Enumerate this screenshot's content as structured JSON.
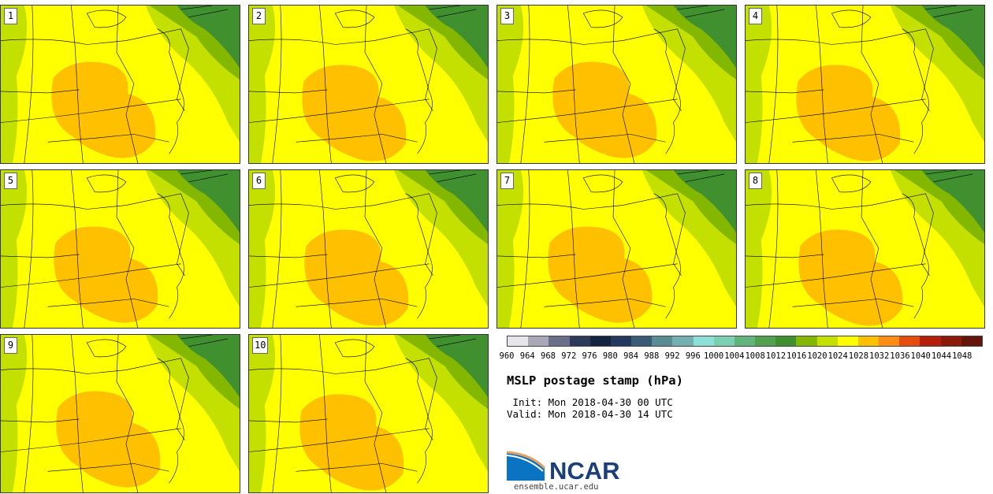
{
  "figure": {
    "title": "MSLP postage stamp (hPa)",
    "init": " Init: Mon 2018-04-30 00 UTC",
    "valid": "Valid: Mon 2018-04-30 14 UTC",
    "logo_text": "NCAR",
    "url": "ensemble.ucar.edu"
  },
  "panels": [
    {
      "label": "1"
    },
    {
      "label": "2"
    },
    {
      "label": "3"
    },
    {
      "label": "4"
    },
    {
      "label": "5"
    },
    {
      "label": "6"
    },
    {
      "label": "7"
    },
    {
      "label": "8"
    },
    {
      "label": "9"
    },
    {
      "label": "10"
    }
  ],
  "colorbar": {
    "ticks": [
      "960",
      "964",
      "968",
      "972",
      "976",
      "980",
      "984",
      "988",
      "992",
      "996",
      "1000",
      "1004",
      "1008",
      "1012",
      "1016",
      "1020",
      "1024",
      "1028",
      "1032",
      "1036",
      "1040",
      "1044",
      "1048"
    ],
    "colors": [
      "#e6e6ea",
      "#a8a8b8",
      "#6a6e86",
      "#2e3a5a",
      "#14233f",
      "#233a5e",
      "#3a5a78",
      "#5a8c94",
      "#74b0b0",
      "#8ce0d8",
      "#7ccfb0",
      "#62b47c",
      "#50a050",
      "#409030",
      "#84b800",
      "#c4e000",
      "#ffff00",
      "#ffc000",
      "#ff8c14",
      "#e64c0c",
      "#b41e0a",
      "#8c1a0a",
      "#641408"
    ]
  },
  "colors": {
    "high_1028": "#ffc000",
    "mid_1024": "#ffff00",
    "mid_1020": "#c4e000",
    "low_1016": "#84b800",
    "low_1012": "#409030",
    "border": "#000000"
  }
}
